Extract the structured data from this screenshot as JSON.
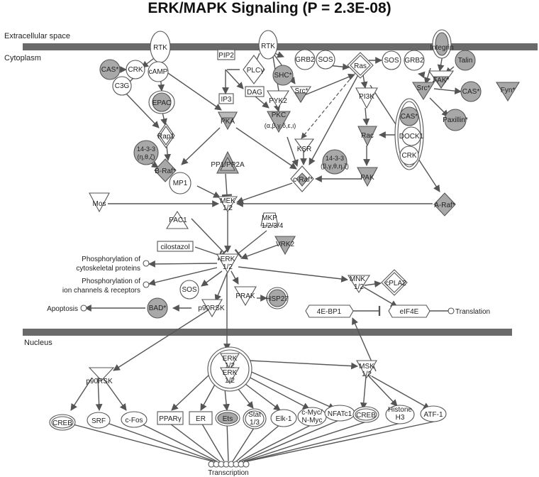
{
  "title": "ERK/MAPK Signaling (P = 2.3E-08)",
  "regions": {
    "extracellular": "Extracellular space",
    "cytoplasm": "Cytoplasm",
    "nucleus": "Nucleus"
  },
  "colors": {
    "membrane": "#6a6a6a",
    "highlight": "#a8a8a8",
    "edge": "#555555"
  },
  "nodes": {
    "rtk1": "RTK",
    "rtk2": "RTK",
    "integrin": "Integrin",
    "talin": "Talin",
    "cas1": "CAS*",
    "crk1": "CRK",
    "c3g": "C3G",
    "camp": "cAMP",
    "epac": "EPAC",
    "rap1": "Rap1",
    "b1433": "14-3-3",
    "b1433sub": "(η,θ,ζ)",
    "braf": "B-Raf*",
    "pip2": "PIP2",
    "plcg": "PLCγ",
    "ip3": "IP3",
    "dag": "DAG",
    "pka": "PKA",
    "pyk2": "PYK2",
    "pkc": "PKC",
    "pkcsub": "(α,β,γ,δ,ε,ι)",
    "shc": "SHC*",
    "src1": "Src*",
    "grb2a": "GRB2",
    "sos1": "SOS",
    "ras": "Ras",
    "sos2": "SOS",
    "grb2b": "GRB2",
    "fak": "FAK*",
    "src2": "Src*",
    "cas2": "CAS*",
    "fyn": "Fyn*",
    "paxillin": "Paxillin*",
    "pi3k": "PI3K",
    "rac": "Rac",
    "pak": "PAK",
    "cas3": "CAS*",
    "dock1": "DOCK1",
    "crk2": "CRK",
    "ksr": "KSR",
    "c1433": "14-3-3",
    "c1433sub": "(β,γ,θ,η,ζ)",
    "craf": "c-Raf*",
    "pp1": "PP1/PP2A",
    "mp1": "MP1",
    "mek": "MEK",
    "mekiso": "1/2",
    "mos": "Mos",
    "araf": "A-Raf*",
    "pac1": "PAC1",
    "mkp": "MKP",
    "mkpiso": "1/2/3/4",
    "cilostazol": "cilostazol",
    "vrk2": "VRK2",
    "erk": "ERK",
    "erkiso": "1/2",
    "sos3": "SOS",
    "prak": "PRAK",
    "hsp27": "HSP27",
    "mnk": "MNK",
    "mnkiso": "1/2",
    "cpla2": "cPLA2",
    "bad": "BAD*",
    "p90rsk1": "p90RSK",
    "4ebp1": "4E-BP1",
    "eif4e": "eIF4E",
    "p90rsk2": "p90RSK",
    "erkn1": "ERK",
    "erkn1iso": "1/2",
    "erkn2": "ERK",
    "erkn2iso": "1/2",
    "msk": "MSK",
    "mskiso": "1/2",
    "creb1": "CREB",
    "srf": "SRF",
    "cfos": "c-Fos",
    "ppar": "PPARγ",
    "er": "ER",
    "ets": "Ets",
    "stat": "Stat",
    "statsub": "1/3",
    "elk1": "Elk-1",
    "cmyc": "c-Myc/",
    "nmyc": "N-Myc",
    "nfatc1": "NFATc1",
    "creb2": "CREB",
    "histone": "Histone",
    "histonesub": "H3",
    "atf1": "ATF-1"
  },
  "processes": {
    "cytoskeletal1": "Phosphorylation of",
    "cytoskeletal2": "cytoskeletal proteins",
    "ion1": "Phosphorylation of",
    "ion2": "ion channels & receptors",
    "apoptosis": "Apoptosis",
    "translation": "Translation",
    "transcription": "Transcription"
  }
}
